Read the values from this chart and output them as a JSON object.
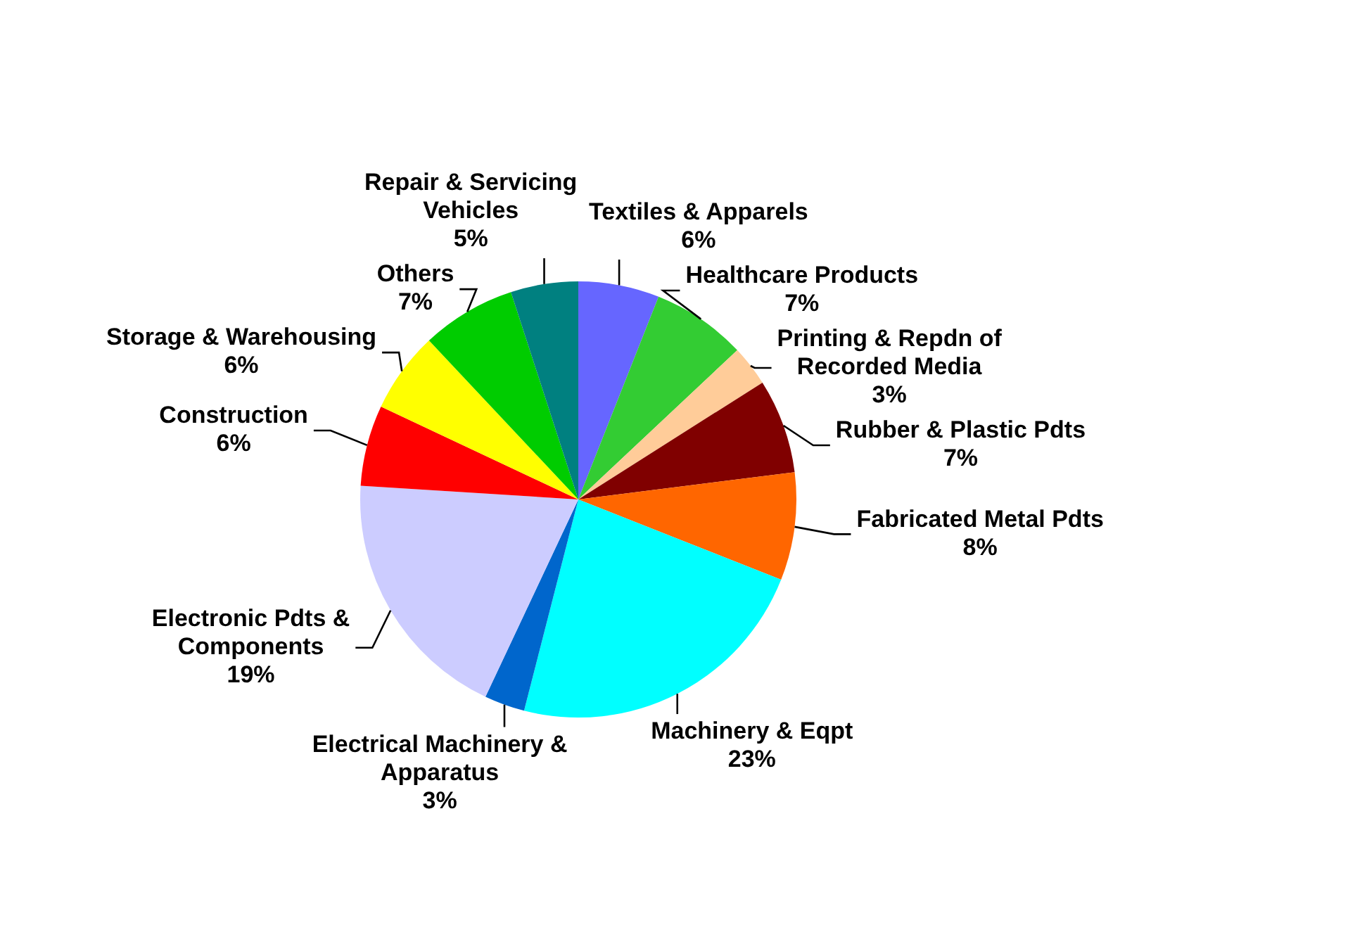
{
  "chart_data": {
    "type": "pie",
    "categories": [
      "Textiles & Apparels",
      "Healthcare Products",
      "Printing & Repdn of Recorded Media",
      "Rubber & Plastic Pdts",
      "Fabricated Metal Pdts",
      "Machinery & Eqpt",
      "Electrical Machinery & Apparatus",
      "Electronic Pdts & Components",
      "Construction",
      "Storage & Warehousing",
      "Others",
      "Repair & Servicing Vehicles"
    ],
    "values": [
      6,
      7,
      3,
      7,
      8,
      23,
      3,
      19,
      6,
      6,
      7,
      5
    ],
    "value_labels": [
      "6%",
      "7%",
      "3%",
      "7%",
      "8%",
      "23%",
      "3%",
      "19%",
      "6%",
      "6%",
      "7%",
      "5%"
    ],
    "colors": [
      "#6666ff",
      "#33cc33",
      "#ffcc99",
      "#800000",
      "#ff6600",
      "#00ffff",
      "#0066cc",
      "#ccccff",
      "#ff0000",
      "#ffff00",
      "#00cc00",
      "#008080"
    ],
    "legend": false
  }
}
